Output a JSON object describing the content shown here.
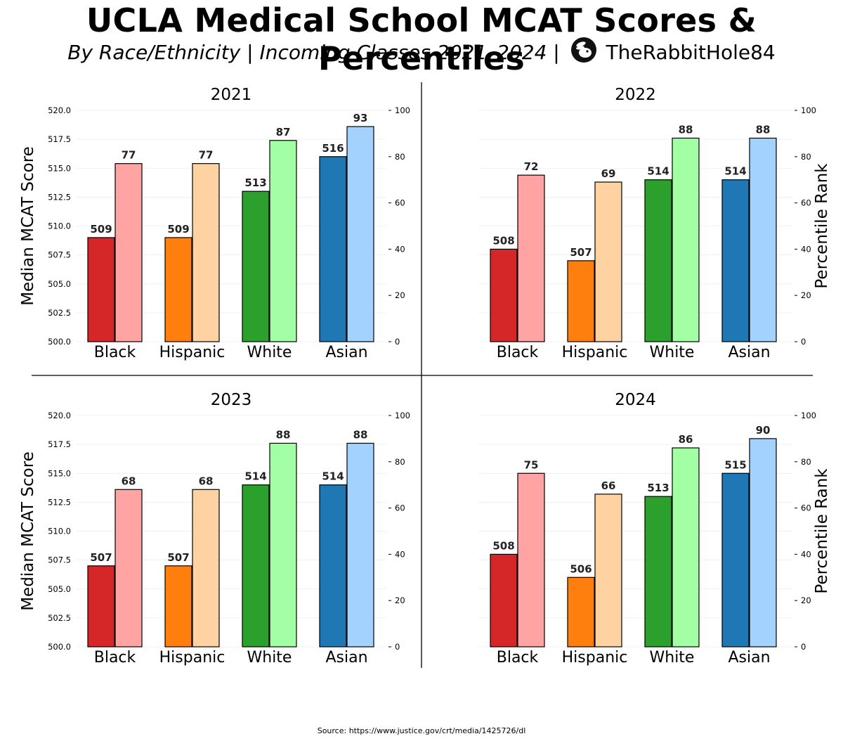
{
  "header": {
    "title": "UCLA Medical School MCAT Scores & Percentiles",
    "subtitle": "By Race/Ethnicity | Incoming Classes 2021–2024 |",
    "brand": "TheRabbitHole84",
    "logo_icon": "rabbit-logo-icon"
  },
  "source": "Source: https://www.justice.gov/crt/media/1425726/dl",
  "colors": {
    "Black": {
      "score": "#d62728",
      "percentile": "#ffa3a3"
    },
    "Hispanic": {
      "score": "#ff7f0e",
      "percentile": "#ffd2a2"
    },
    "White": {
      "score": "#2ca02c",
      "percentile": "#a3ffa3"
    },
    "Asian": {
      "score": "#1f77b4",
      "percentile": "#a3d2ff"
    }
  },
  "chart_data": [
    {
      "type": "bar",
      "title": "2021",
      "categories": [
        "Black",
        "Hispanic",
        "White",
        "Asian"
      ],
      "series": [
        {
          "name": "Median MCAT Score",
          "axis": "left",
          "values": [
            509,
            509,
            513,
            516
          ]
        },
        {
          "name": "Percentile Rank",
          "axis": "right",
          "values": [
            77,
            77,
            87,
            93
          ]
        }
      ],
      "ylabel": "Median MCAT Score",
      "y2label": "",
      "ylim": [
        500,
        520
      ],
      "y2lim": [
        0,
        100
      ],
      "yticks": [
        "500.0",
        "502.5",
        "505.0",
        "507.5",
        "510.0",
        "512.5",
        "515.0",
        "517.5",
        "520.0"
      ],
      "y2ticks": [
        "0",
        "20",
        "40",
        "60",
        "80",
        "100"
      ]
    },
    {
      "type": "bar",
      "title": "2022",
      "categories": [
        "Black",
        "Hispanic",
        "White",
        "Asian"
      ],
      "series": [
        {
          "name": "Median MCAT Score",
          "axis": "left",
          "values": [
            508,
            507,
            514,
            514
          ]
        },
        {
          "name": "Percentile Rank",
          "axis": "right",
          "values": [
            72,
            69,
            88,
            88
          ]
        }
      ],
      "ylabel": "",
      "y2label": "Percentile Rank",
      "ylim": [
        500,
        520
      ],
      "y2lim": [
        0,
        100
      ],
      "yticks": [],
      "y2ticks": [
        "0",
        "20",
        "40",
        "60",
        "80",
        "100"
      ]
    },
    {
      "type": "bar",
      "title": "2023",
      "categories": [
        "Black",
        "Hispanic",
        "White",
        "Asian"
      ],
      "series": [
        {
          "name": "Median MCAT Score",
          "axis": "left",
          "values": [
            507,
            507,
            514,
            514
          ]
        },
        {
          "name": "Percentile Rank",
          "axis": "right",
          "values": [
            68,
            68,
            88,
            88
          ]
        }
      ],
      "ylabel": "Median MCAT Score",
      "y2label": "",
      "ylim": [
        500,
        520
      ],
      "y2lim": [
        0,
        100
      ],
      "yticks": [
        "500.0",
        "502.5",
        "505.0",
        "507.5",
        "510.0",
        "512.5",
        "515.0",
        "517.5",
        "520.0"
      ],
      "y2ticks": [
        "0",
        "20",
        "40",
        "60",
        "80",
        "100"
      ]
    },
    {
      "type": "bar",
      "title": "2024",
      "categories": [
        "Black",
        "Hispanic",
        "White",
        "Asian"
      ],
      "series": [
        {
          "name": "Median MCAT Score",
          "axis": "left",
          "values": [
            508,
            506,
            513,
            515
          ]
        },
        {
          "name": "Percentile Rank",
          "axis": "right",
          "values": [
            75,
            66,
            86,
            90
          ]
        }
      ],
      "ylabel": "",
      "y2label": "Percentile Rank",
      "ylim": [
        500,
        520
      ],
      "y2lim": [
        0,
        100
      ],
      "yticks": [],
      "y2ticks": [
        "0",
        "20",
        "40",
        "60",
        "80",
        "100"
      ]
    }
  ]
}
